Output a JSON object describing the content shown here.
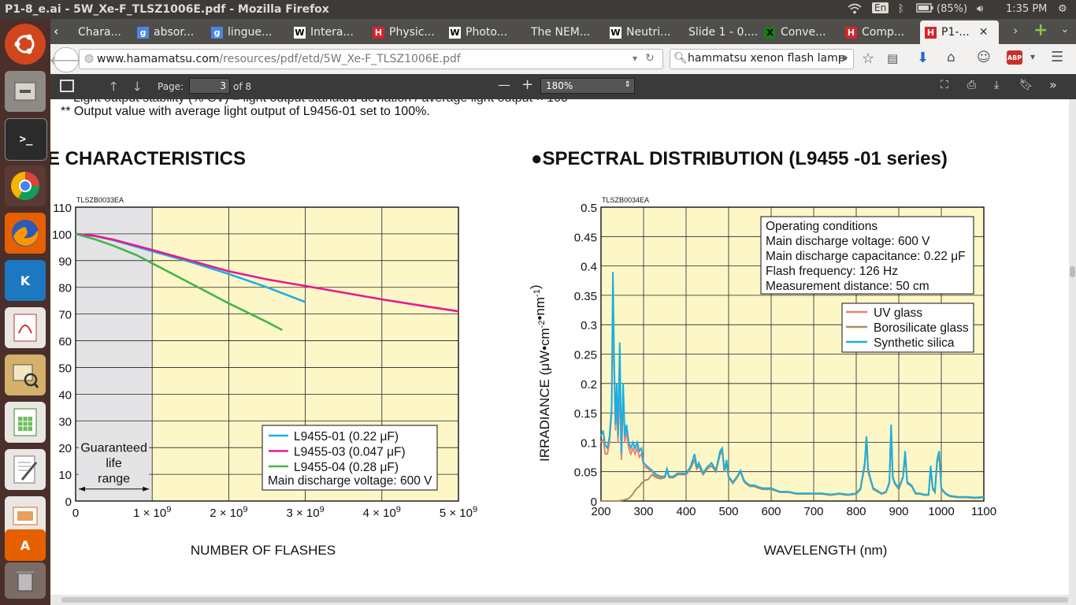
{
  "system": {
    "window_title": "P1-8_e.ai - 5W_Xe-F_TLSZ1006E.pdf - Mozilla Firefox",
    "keyboard": "En",
    "battery": "(85%)",
    "clock": "1:35 PM"
  },
  "tabs": [
    {
      "label": "Chara...",
      "favicon": "H"
    },
    {
      "label": "absor...",
      "favicon": "g"
    },
    {
      "label": "lingue...",
      "favicon": "g"
    },
    {
      "label": "Intera...",
      "favicon": "W"
    },
    {
      "label": "Physic...",
      "favicon": "H"
    },
    {
      "label": "Photo...",
      "favicon": "W"
    },
    {
      "label": "The NEM...",
      "favicon": ""
    },
    {
      "label": "Neutri...",
      "favicon": "W"
    },
    {
      "label": "Slide 1 - 0....",
      "favicon": ""
    },
    {
      "label": "Conve...",
      "favicon": "X"
    },
    {
      "label": "Comp...",
      "favicon": "H"
    },
    {
      "label": "P1-...",
      "favicon": "H"
    }
  ],
  "nav": {
    "url": "www.hamamatsu.com/resources/pdf/etd/5W_Xe-F_TLSZ1006E.pdf",
    "url_host": "www.hamamatsu.com",
    "url_path": "/resources/pdf/etd/5W_Xe-F_TLSZ1006E.pdf",
    "search": "hammatsu xenon flash lamp"
  },
  "pdf_toolbar": {
    "page_label": "Page:",
    "page_value": "3",
    "page_total": "of 8",
    "zoom": "180%"
  },
  "page": {
    "partial_top_line": "Light output stability (% CV) = light output standard deviation / average light output × 100",
    "footnote": "** Output value with average light output of L9456-01 set to 100%.",
    "left_heading": "E CHARACTERISTICS",
    "right_heading": "●SPECTRAL DISTRIBUTION (L9455 -01 series)"
  },
  "chart_data": [
    {
      "type": "line",
      "code": "TLSZB0033EA",
      "xlabel": "NUMBER OF FLASHES",
      "xticks": [
        "0",
        "1 × 10⁹",
        "2 × 10⁹",
        "3 × 10⁹",
        "4 × 10⁹",
        "5 × 10⁹"
      ],
      "yticks": [
        "0",
        "10",
        "20",
        "30",
        "40",
        "50",
        "60",
        "70",
        "80",
        "90",
        "100",
        "110"
      ],
      "xlim": [
        0,
        5000000000.0
      ],
      "ylim": [
        0,
        110
      ],
      "shaded_region": {
        "x": [
          0,
          1000000000.0
        ],
        "label": [
          "Guaranteed",
          "life",
          "range"
        ]
      },
      "legend": {
        "placement": "bottom-right",
        "note": "Main discharge voltage: 600 V"
      },
      "series": [
        {
          "name": "L9455-01 (0.22 μF)",
          "color": "#1aaee8",
          "x": [
            0,
            250000000.0,
            500000000.0,
            1000000000.0,
            1500000000.0,
            2000000000.0,
            2500000000.0,
            3000000000.0
          ],
          "y": [
            100,
            99.2,
            97.6,
            93.5,
            89.5,
            85,
            80,
            74.5
          ]
        },
        {
          "name": "L9455-03 (0.047 μF)",
          "color": "#e8198f",
          "x": [
            0,
            250000000.0,
            500000000.0,
            1000000000.0,
            1500000000.0,
            2000000000.0,
            2500000000.0,
            3000000000.0,
            3500000000.0,
            4000000000.0,
            4500000000.0,
            5000000000.0
          ],
          "y": [
            100,
            99.3,
            97.8,
            94,
            90,
            86,
            83,
            80.5,
            78,
            75.5,
            73.2,
            71
          ]
        },
        {
          "name": "L9455-04 (0.28 μF)",
          "color": "#44b549",
          "x": [
            0,
            250000000.0,
            500000000.0,
            800000000.0,
            1000000000.0,
            1500000000.0,
            2000000000.0,
            2500000000.0,
            2700000000.0
          ],
          "y": [
            100,
            98,
            95.5,
            92,
            89,
            81.5,
            74,
            67,
            64
          ]
        }
      ]
    },
    {
      "type": "line",
      "code": "TLSZB0034EA",
      "xlabel": "WAVELENGTH (nm)",
      "ylabel": "IRRADIANCE   (μW•cm⁻²•nm⁻¹)",
      "xticks": [
        "200",
        "300",
        "400",
        "500",
        "600",
        "700",
        "800",
        "900",
        "1000",
        "1100"
      ],
      "yticks": [
        "0",
        "0.05",
        "0.1",
        "0.15",
        "0.2",
        "0.25",
        "0.3",
        "0.35",
        "0.4",
        "0.45",
        "0.5"
      ],
      "xlim": [
        200,
        1100
      ],
      "ylim": [
        0,
        0.5
      ],
      "conditions": [
        "Operating conditions",
        "Main discharge voltage: 600 V",
        "Main discharge capacitance: 0.22 μF",
        "Flash frequency: 126 Hz",
        "Measurement distance: 50 cm"
      ],
      "legend": {
        "placement": "top-right"
      },
      "series": [
        {
          "name": "UV glass",
          "color": "#f08070",
          "x": [
            200,
            205,
            210,
            215,
            220,
            225,
            228,
            231,
            234,
            237,
            240,
            244,
            248,
            252,
            256,
            260,
            265,
            270,
            275,
            280,
            285,
            290,
            295,
            300,
            310,
            320,
            330,
            340,
            350,
            355,
            360,
            370,
            380,
            390,
            400,
            410,
            420,
            425,
            430,
            440,
            450,
            460,
            470,
            480,
            485,
            490,
            495,
            500,
            510,
            520,
            528,
            535,
            540,
            550,
            560,
            570,
            580,
            590,
            600,
            620,
            640,
            660,
            680,
            700,
            720,
            740,
            760,
            780,
            800,
            810,
            820,
            824,
            828,
            832,
            840,
            860,
            870,
            878,
            882,
            886,
            890,
            900,
            910,
            915,
            920,
            930,
            940,
            950,
            960,
            970,
            975,
            980,
            985,
            990,
            995,
            1000,
            1010,
            1020,
            1040,
            1060,
            1080,
            1100
          ],
          "y": [
            0.1,
            0.105,
            0.08,
            0.08,
            0.1,
            0.15,
            0.33,
            0.22,
            0.12,
            0.18,
            0.1,
            0.2,
            0.07,
            0.18,
            0.1,
            0.12,
            0.09,
            0.08,
            0.09,
            0.08,
            0.09,
            0.075,
            0.08,
            0.06,
            0.055,
            0.05,
            0.042,
            0.04,
            0.04,
            0.052,
            0.04,
            0.04,
            0.045,
            0.045,
            0.045,
            0.055,
            0.07,
            0.055,
            0.06,
            0.045,
            0.055,
            0.06,
            0.05,
            0.08,
            0.085,
            0.05,
            0.065,
            0.04,
            0.03,
            0.04,
            0.05,
            0.035,
            0.03,
            0.025,
            0.025,
            0.022,
            0.02,
            0.02,
            0.02,
            0.015,
            0.015,
            0.012,
            0.012,
            0.012,
            0.012,
            0.01,
            0.012,
            0.01,
            0.012,
            0.02,
            0.06,
            0.105,
            0.05,
            0.04,
            0.02,
            0.012,
            0.015,
            0.03,
            0.12,
            0.04,
            0.03,
            0.02,
            0.04,
            0.08,
            0.03,
            0.025,
            0.012,
            0.012,
            0.01,
            0.01,
            0.055,
            0.02,
            0.015,
            0.065,
            0.08,
            0.02,
            0.012,
            0.008,
            0.006,
            0.006,
            0.005,
            0.006
          ]
        },
        {
          "name": "Borosilicate glass",
          "color": "#b08c60",
          "x": [
            200,
            240,
            255,
            265,
            270,
            275,
            280,
            285,
            290,
            295,
            300,
            305,
            310,
            320,
            330,
            340,
            350,
            355,
            360,
            370,
            380,
            390,
            400,
            410,
            420,
            425,
            430,
            440,
            450,
            460,
            470,
            480,
            485,
            490,
            495,
            500,
            510,
            520,
            528,
            535,
            540,
            550,
            560,
            570,
            580,
            590,
            600,
            620,
            640,
            660,
            680,
            700,
            720,
            740,
            760,
            780,
            800,
            810,
            820,
            824,
            828,
            832,
            840,
            860,
            870,
            878,
            882,
            886,
            890,
            900,
            910,
            915,
            920,
            930,
            940,
            950,
            960,
            970,
            975,
            980,
            985,
            990,
            995,
            1000,
            1010,
            1020,
            1040,
            1060,
            1080,
            1100
          ],
          "y": [
            0,
            0,
            0.002,
            0.004,
            0.008,
            0.012,
            0.018,
            0.022,
            0.025,
            0.03,
            0.033,
            0.036,
            0.036,
            0.045,
            0.04,
            0.038,
            0.04,
            0.052,
            0.04,
            0.04,
            0.045,
            0.045,
            0.045,
            0.055,
            0.07,
            0.055,
            0.06,
            0.045,
            0.055,
            0.06,
            0.05,
            0.08,
            0.085,
            0.05,
            0.065,
            0.04,
            0.03,
            0.04,
            0.05,
            0.035,
            0.03,
            0.025,
            0.025,
            0.022,
            0.02,
            0.02,
            0.02,
            0.015,
            0.015,
            0.012,
            0.012,
            0.012,
            0.012,
            0.01,
            0.012,
            0.01,
            0.012,
            0.02,
            0.06,
            0.11,
            0.05,
            0.04,
            0.02,
            0.012,
            0.015,
            0.03,
            0.125,
            0.04,
            0.03,
            0.02,
            0.04,
            0.08,
            0.03,
            0.025,
            0.012,
            0.012,
            0.01,
            0.01,
            0.055,
            0.02,
            0.015,
            0.065,
            0.08,
            0.02,
            0.012,
            0.008,
            0.006,
            0.006,
            0.005,
            0.006
          ]
        },
        {
          "name": "Synthetic silica",
          "color": "#1ab0e0",
          "x": [
            200,
            205,
            210,
            215,
            220,
            225,
            228,
            231,
            234,
            237,
            240,
            244,
            248,
            252,
            256,
            260,
            265,
            270,
            275,
            280,
            285,
            290,
            295,
            300,
            310,
            320,
            330,
            340,
            350,
            355,
            360,
            370,
            380,
            390,
            400,
            410,
            420,
            425,
            430,
            440,
            450,
            460,
            470,
            480,
            485,
            490,
            495,
            500,
            510,
            520,
            528,
            535,
            540,
            550,
            560,
            570,
            580,
            590,
            600,
            620,
            640,
            660,
            680,
            700,
            720,
            740,
            760,
            780,
            800,
            810,
            820,
            824,
            828,
            832,
            840,
            860,
            870,
            878,
            882,
            886,
            890,
            900,
            910,
            915,
            920,
            930,
            940,
            950,
            960,
            970,
            975,
            980,
            985,
            990,
            995,
            1000,
            1010,
            1020,
            1040,
            1060,
            1080,
            1100
          ],
          "y": [
            0.11,
            0.12,
            0.095,
            0.09,
            0.11,
            0.16,
            0.39,
            0.24,
            0.13,
            0.2,
            0.11,
            0.27,
            0.08,
            0.2,
            0.11,
            0.13,
            0.1,
            0.09,
            0.1,
            0.09,
            0.1,
            0.085,
            0.09,
            0.065,
            0.058,
            0.052,
            0.045,
            0.042,
            0.042,
            0.055,
            0.042,
            0.042,
            0.047,
            0.047,
            0.047,
            0.058,
            0.08,
            0.058,
            0.065,
            0.048,
            0.058,
            0.065,
            0.052,
            0.085,
            0.09,
            0.052,
            0.07,
            0.042,
            0.032,
            0.042,
            0.052,
            0.037,
            0.032,
            0.027,
            0.027,
            0.024,
            0.022,
            0.022,
            0.022,
            0.016,
            0.016,
            0.013,
            0.013,
            0.013,
            0.013,
            0.011,
            0.013,
            0.011,
            0.013,
            0.022,
            0.065,
            0.11,
            0.055,
            0.042,
            0.022,
            0.013,
            0.016,
            0.032,
            0.13,
            0.042,
            0.032,
            0.022,
            0.042,
            0.085,
            0.032,
            0.027,
            0.013,
            0.013,
            0.011,
            0.011,
            0.06,
            0.022,
            0.016,
            0.07,
            0.085,
            0.022,
            0.013,
            0.009,
            0.007,
            0.007,
            0.006,
            0.007
          ]
        }
      ]
    }
  ]
}
